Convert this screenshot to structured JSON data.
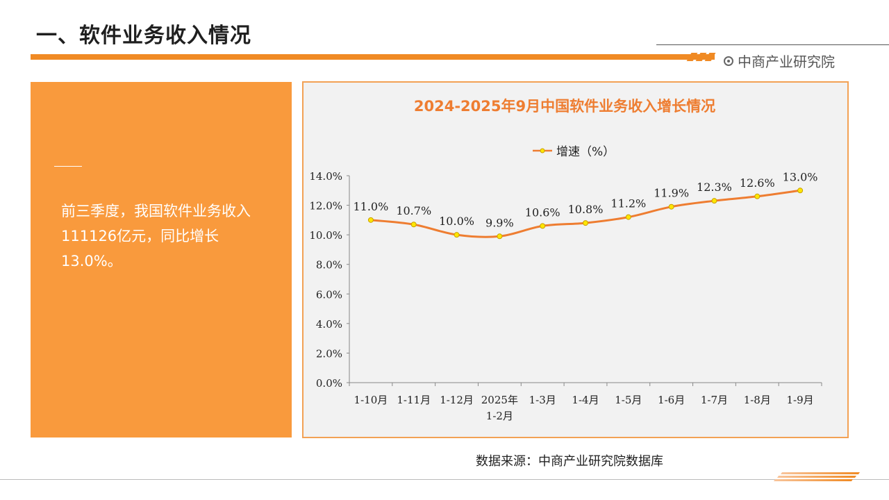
{
  "page": {
    "title": "一、软件业务收入情况",
    "brand": "中商产业研究院",
    "summary": "前三季度，我国软件业务收入111126亿元，同比增长13.0%。",
    "source": "数据来源：中商产业研究院数据库"
  },
  "colors": {
    "accent": "#f08a24",
    "panel": "#f99a3d",
    "line": "#ee7d31",
    "marker": "#ffe600",
    "plot_bg": "#f2f2f2"
  },
  "chart_data": {
    "type": "line",
    "title": "2024-2025年9月中国软件业务收入增长情况",
    "categories": [
      "1-10月",
      "1-11月",
      "1-12月",
      "2025年1-2月",
      "1-3月",
      "1-4月",
      "1-5月",
      "1-6月",
      "1-7月",
      "1-8月",
      "1-9月"
    ],
    "series": [
      {
        "name": "增速（%）",
        "values": [
          11.0,
          10.7,
          10.0,
          9.9,
          10.6,
          10.8,
          11.2,
          11.9,
          12.3,
          12.6,
          13.0
        ]
      }
    ],
    "data_labels": [
      "11.0%",
      "10.7%",
      "10.0%",
      "9.9%",
      "10.6%",
      "10.8%",
      "11.2%",
      "11.9%",
      "12.3%",
      "12.6%",
      "13.0%"
    ],
    "y_ticks": [
      "0.0%",
      "2.0%",
      "4.0%",
      "6.0%",
      "8.0%",
      "10.0%",
      "12.0%",
      "14.0%"
    ],
    "ylim": [
      0,
      14
    ],
    "grid": false,
    "legend": "top-center",
    "smooth": true
  }
}
